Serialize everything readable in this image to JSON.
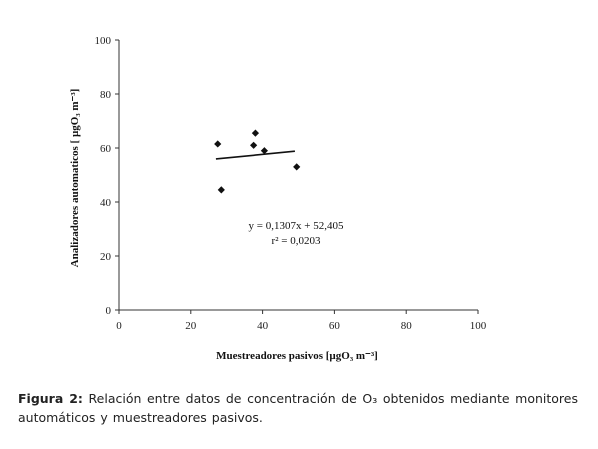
{
  "chart_data": {
    "type": "scatter",
    "xlabel": "Muestreadores pasivos [µgO₃ m⁻³]",
    "ylabel": "Analizadores automaticos [ µgO₃ m⁻³]",
    "xlim": [
      0,
      100
    ],
    "ylim": [
      0,
      100
    ],
    "x_ticks": [
      "0",
      "20",
      "40",
      "60",
      "80",
      "100"
    ],
    "y_ticks": [
      "0",
      "20",
      "40",
      "60",
      "80",
      "100"
    ],
    "grid": false,
    "points": [
      {
        "x": 27.5,
        "y": 61.5
      },
      {
        "x": 28.5,
        "y": 44.5
      },
      {
        "x": 37.5,
        "y": 61.0
      },
      {
        "x": 38.0,
        "y": 65.5
      },
      {
        "x": 40.5,
        "y": 59.0
      },
      {
        "x": 49.5,
        "y": 53.0
      }
    ],
    "trendline": {
      "slope": 0.1307,
      "intercept": 52.405,
      "x_range": [
        27,
        49
      ]
    },
    "annotations": [
      "y = 0,1307x + 52,405",
      "r² = 0,0203"
    ]
  },
  "caption": {
    "label": "Figura 2:",
    "text": "Relación entre datos de concentración de O₃ obtenidos mediante monitores automáticos y muestreadores pasivos."
  }
}
